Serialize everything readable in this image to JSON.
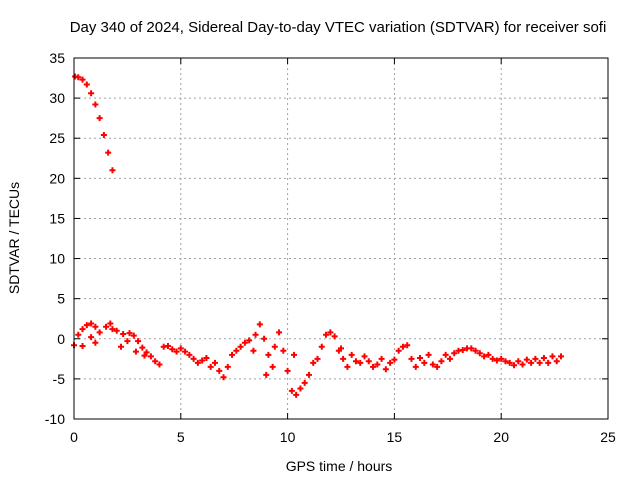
{
  "chart_data": {
    "type": "scatter",
    "title": "Day 340 of 2024, Sidereal Day-to-day VTEC variation (SDTVAR) for receiver sofi",
    "xlabel": "GPS time / hours",
    "ylabel": "SDTVAR / TECUs",
    "xlim": [
      0,
      25
    ],
    "ylim": [
      -10,
      35
    ],
    "xticks": [
      "0",
      "5",
      "10",
      "15",
      "20",
      "25"
    ],
    "yticks": [
      "-10",
      "-5",
      "0",
      "5",
      "10",
      "15",
      "20",
      "25",
      "30",
      "35"
    ],
    "grid": true,
    "marker": "plus",
    "series": [
      {
        "name": "SDTVAR",
        "color": "#ff0000",
        "points": [
          [
            0.05,
            32.7
          ],
          [
            0.2,
            32.6
          ],
          [
            0.4,
            32.3
          ],
          [
            0.6,
            31.7
          ],
          [
            0.8,
            30.6
          ],
          [
            1.0,
            29.2
          ],
          [
            1.2,
            27.5
          ],
          [
            1.4,
            25.4
          ],
          [
            1.6,
            23.2
          ],
          [
            1.8,
            21.0
          ],
          [
            0.0,
            -0.8
          ],
          [
            0.2,
            0.5
          ],
          [
            0.4,
            1.2
          ],
          [
            0.6,
            1.7
          ],
          [
            0.8,
            1.9
          ],
          [
            1.0,
            1.5
          ],
          [
            1.2,
            0.8
          ],
          [
            1.0,
            -0.5
          ],
          [
            0.8,
            0.2
          ],
          [
            0.4,
            -0.9
          ],
          [
            1.5,
            1.5
          ],
          [
            1.7,
            1.9
          ],
          [
            1.8,
            1.2
          ],
          [
            2.0,
            1.0
          ],
          [
            2.3,
            0.6
          ],
          [
            2.5,
            -0.3
          ],
          [
            2.2,
            -1.0
          ],
          [
            2.6,
            0.7
          ],
          [
            2.8,
            0.4
          ],
          [
            3.0,
            -0.3
          ],
          [
            3.2,
            -1.1
          ],
          [
            3.4,
            -1.7
          ],
          [
            3.6,
            -2.2
          ],
          [
            3.8,
            -2.8
          ],
          [
            4.0,
            -3.2
          ],
          [
            2.9,
            -1.6
          ],
          [
            3.3,
            -2.1
          ],
          [
            4.2,
            -1.0
          ],
          [
            4.4,
            -0.9
          ],
          [
            4.6,
            -1.3
          ],
          [
            4.8,
            -1.6
          ],
          [
            5.0,
            -1.2
          ],
          [
            5.2,
            -1.6
          ],
          [
            5.4,
            -2.0
          ],
          [
            5.6,
            -2.5
          ],
          [
            5.8,
            -3.0
          ],
          [
            6.0,
            -2.7
          ],
          [
            6.2,
            -2.4
          ],
          [
            6.4,
            -3.5
          ],
          [
            6.6,
            -3.0
          ],
          [
            6.8,
            -4.0
          ],
          [
            7.0,
            -4.8
          ],
          [
            7.2,
            -3.5
          ],
          [
            7.4,
            -2.0
          ],
          [
            7.6,
            -1.5
          ],
          [
            7.8,
            -1.0
          ],
          [
            8.0,
            -0.5
          ],
          [
            8.2,
            -0.2
          ],
          [
            8.4,
            -1.5
          ],
          [
            8.5,
            0.5
          ],
          [
            8.7,
            1.8
          ],
          [
            8.9,
            0.0
          ],
          [
            9.1,
            -2.0
          ],
          [
            9.3,
            -3.5
          ],
          [
            9.0,
            -4.5
          ],
          [
            9.4,
            -1.0
          ],
          [
            9.6,
            0.8
          ],
          [
            9.8,
            -1.5
          ],
          [
            10.0,
            -4.0
          ],
          [
            10.2,
            -6.5
          ],
          [
            10.4,
            -7.0
          ],
          [
            10.6,
            -6.2
          ],
          [
            10.8,
            -5.5
          ],
          [
            10.3,
            -2.0
          ],
          [
            11.0,
            -4.5
          ],
          [
            11.2,
            -3.0
          ],
          [
            11.4,
            -2.5
          ],
          [
            11.6,
            -1.0
          ],
          [
            11.8,
            0.5
          ],
          [
            12.0,
            0.8
          ],
          [
            12.2,
            0.3
          ],
          [
            12.4,
            -1.5
          ],
          [
            12.6,
            -2.5
          ],
          [
            12.8,
            -3.5
          ],
          [
            12.5,
            -1.2
          ],
          [
            13.0,
            -2.0
          ],
          [
            13.2,
            -2.8
          ],
          [
            13.4,
            -3.0
          ],
          [
            13.6,
            -2.2
          ],
          [
            13.8,
            -2.8
          ],
          [
            14.0,
            -3.5
          ],
          [
            14.2,
            -3.2
          ],
          [
            14.4,
            -2.5
          ],
          [
            14.6,
            -3.8
          ],
          [
            14.8,
            -3.0
          ],
          [
            15.0,
            -2.6
          ],
          [
            15.2,
            -1.5
          ],
          [
            15.4,
            -1.0
          ],
          [
            15.6,
            -0.8
          ],
          [
            15.8,
            -2.5
          ],
          [
            16.0,
            -3.5
          ],
          [
            16.2,
            -2.4
          ],
          [
            16.4,
            -3.0
          ],
          [
            16.6,
            -2.0
          ],
          [
            16.8,
            -3.2
          ],
          [
            17.0,
            -3.5
          ],
          [
            17.2,
            -2.8
          ],
          [
            17.4,
            -2.0
          ],
          [
            17.6,
            -2.5
          ],
          [
            17.8,
            -1.8
          ],
          [
            18.0,
            -1.5
          ],
          [
            18.2,
            -1.4
          ],
          [
            18.4,
            -1.2
          ],
          [
            18.6,
            -1.2
          ],
          [
            18.8,
            -1.5
          ],
          [
            19.0,
            -1.8
          ],
          [
            19.2,
            -2.2
          ],
          [
            19.4,
            -2.0
          ],
          [
            19.6,
            -2.5
          ],
          [
            19.8,
            -2.7
          ],
          [
            20.0,
            -2.5
          ],
          [
            20.2,
            -2.8
          ],
          [
            20.4,
            -3.0
          ],
          [
            20.6,
            -3.3
          ],
          [
            20.8,
            -2.8
          ],
          [
            21.0,
            -3.2
          ],
          [
            21.2,
            -2.6
          ],
          [
            21.4,
            -3.0
          ],
          [
            21.6,
            -2.5
          ],
          [
            21.8,
            -3.0
          ],
          [
            22.0,
            -2.4
          ],
          [
            22.2,
            -3.0
          ],
          [
            22.4,
            -2.2
          ],
          [
            22.6,
            -2.8
          ],
          [
            22.8,
            -2.2
          ]
        ]
      }
    ]
  }
}
